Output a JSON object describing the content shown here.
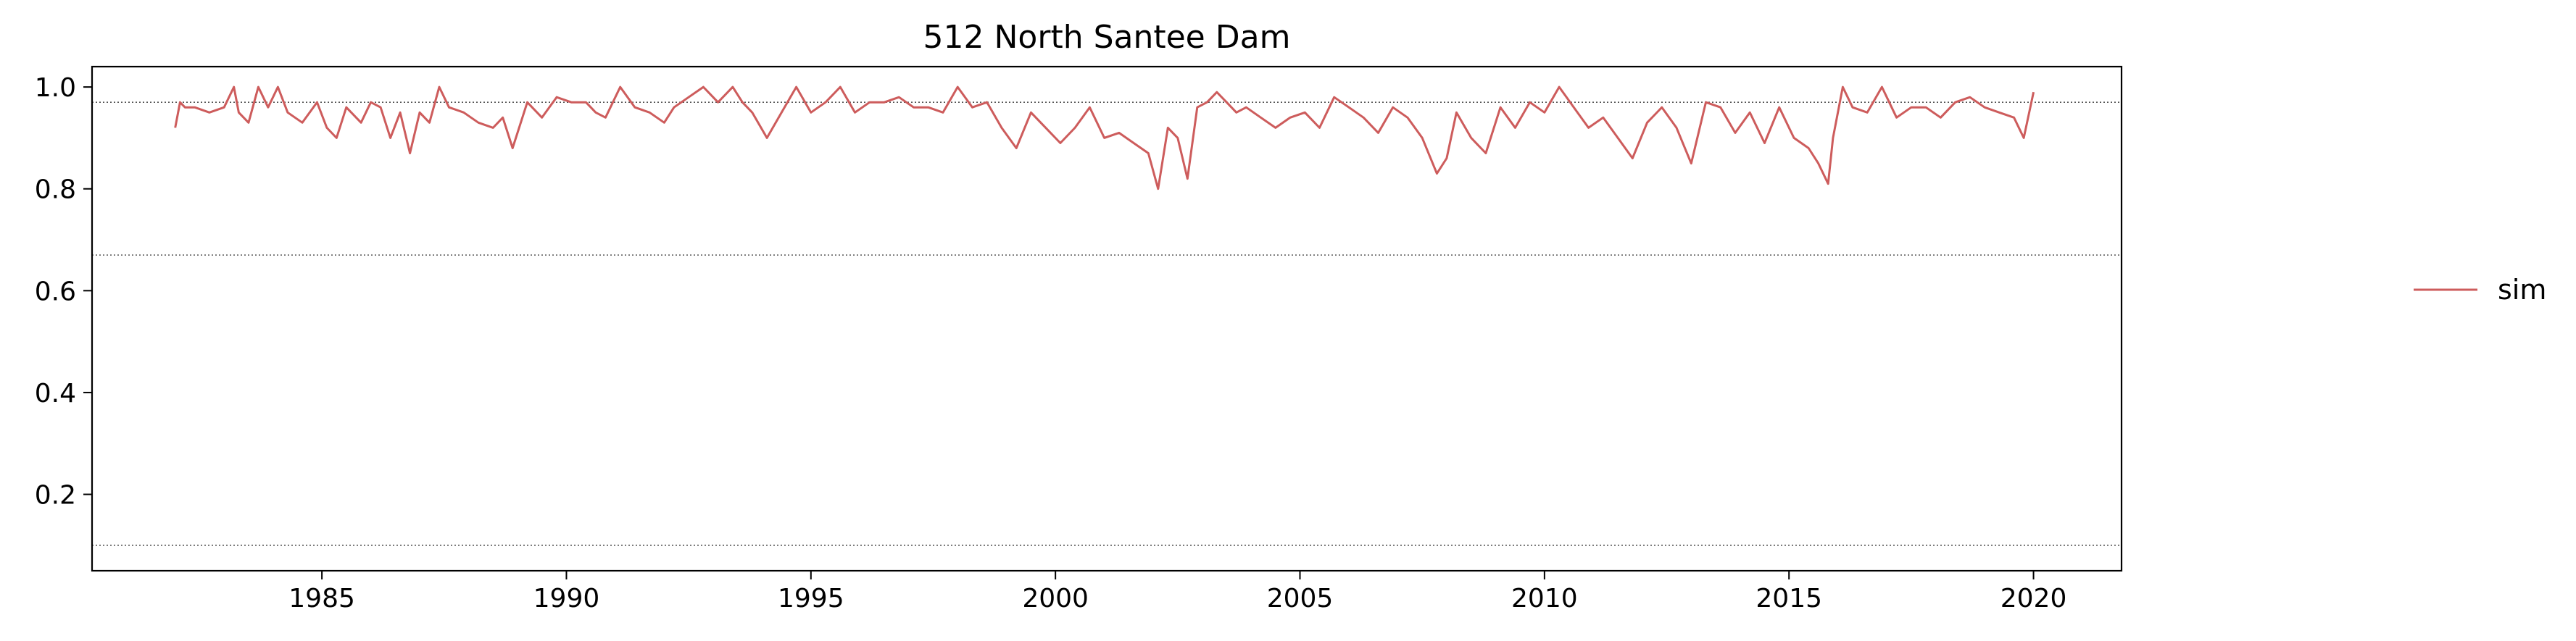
{
  "chart_data": {
    "type": "line",
    "title": "512  North Santee Dam",
    "xlabel": "",
    "ylabel": "",
    "xlim": [
      1980.3,
      2021.8
    ],
    "ylim": [
      0.05,
      1.04
    ],
    "x_ticks": [
      1985,
      1990,
      1995,
      2000,
      2005,
      2010,
      2015,
      2020
    ],
    "x_tick_labels": [
      "1985",
      "1990",
      "1995",
      "2000",
      "2005",
      "2010",
      "2015",
      "2020"
    ],
    "y_ticks": [
      0.2,
      0.4,
      0.6,
      0.8,
      1.0
    ],
    "y_tick_labels": [
      "0.2",
      "0.4",
      "0.6",
      "0.8",
      "1.0"
    ],
    "reference_lines": [
      0.97,
      0.67,
      0.1
    ],
    "grid": false,
    "legend_position": "right, outside plot",
    "colors": {
      "sim": "#cd5c5c",
      "reference": "#555555"
    },
    "series": [
      {
        "name": "sim",
        "x": [
          1982.0,
          1982.1,
          1982.2,
          1982.4,
          1982.7,
          1983.0,
          1983.2,
          1983.3,
          1983.5,
          1983.7,
          1983.9,
          1984.1,
          1984.3,
          1984.6,
          1984.9,
          1985.1,
          1985.3,
          1985.5,
          1985.8,
          1986.0,
          1986.2,
          1986.4,
          1986.6,
          1986.8,
          1987.0,
          1987.2,
          1987.4,
          1987.6,
          1987.9,
          1988.2,
          1988.5,
          1988.7,
          1988.9,
          1989.2,
          1989.5,
          1989.8,
          1990.1,
          1990.4,
          1990.6,
          1990.8,
          1991.1,
          1991.4,
          1991.7,
          1992.0,
          1992.2,
          1992.5,
          1992.8,
          1993.1,
          1993.4,
          1993.6,
          1993.8,
          1994.1,
          1994.4,
          1994.7,
          1995.0,
          1995.3,
          1995.6,
          1995.9,
          1996.2,
          1996.5,
          1996.8,
          1997.1,
          1997.4,
          1997.7,
          1998.0,
          1998.3,
          1998.6,
          1998.9,
          1999.2,
          1999.5,
          1999.8,
          2000.1,
          2000.4,
          2000.7,
          2001.0,
          2001.3,
          2001.6,
          2001.9,
          2002.1,
          2002.3,
          2002.5,
          2002.7,
          2002.9,
          2003.1,
          2003.3,
          2003.5,
          2003.7,
          2003.9,
          2004.2,
          2004.5,
          2004.8,
          2005.1,
          2005.4,
          2005.7,
          2006.0,
          2006.3,
          2006.6,
          2006.9,
          2007.2,
          2007.5,
          2007.8,
          2008.0,
          2008.2,
          2008.5,
          2008.8,
          2009.1,
          2009.4,
          2009.7,
          2010.0,
          2010.3,
          2010.6,
          2010.9,
          2011.2,
          2011.5,
          2011.8,
          2012.1,
          2012.4,
          2012.7,
          2013.0,
          2013.3,
          2013.6,
          2013.9,
          2014.2,
          2014.5,
          2014.8,
          2015.1,
          2015.4,
          2015.6,
          2015.8,
          2015.9,
          2016.1,
          2016.3,
          2016.6,
          2016.9,
          2017.2,
          2017.5,
          2017.8,
          2018.1,
          2018.4,
          2018.7,
          2019.0,
          2019.3,
          2019.6,
          2019.8,
          2020.0
        ],
        "y": [
          0.92,
          0.97,
          0.96,
          0.96,
          0.95,
          0.96,
          1.0,
          0.95,
          0.93,
          1.0,
          0.96,
          1.0,
          0.95,
          0.93,
          0.97,
          0.92,
          0.9,
          0.96,
          0.93,
          0.97,
          0.96,
          0.9,
          0.95,
          0.87,
          0.95,
          0.93,
          1.0,
          0.96,
          0.95,
          0.93,
          0.92,
          0.94,
          0.88,
          0.97,
          0.94,
          0.98,
          0.97,
          0.97,
          0.95,
          0.94,
          1.0,
          0.96,
          0.95,
          0.93,
          0.96,
          0.98,
          1.0,
          0.97,
          1.0,
          0.97,
          0.95,
          0.9,
          0.95,
          1.0,
          0.95,
          0.97,
          1.0,
          0.95,
          0.97,
          0.97,
          0.98,
          0.96,
          0.96,
          0.95,
          1.0,
          0.96,
          0.97,
          0.92,
          0.88,
          0.95,
          0.92,
          0.89,
          0.92,
          0.96,
          0.9,
          0.91,
          0.89,
          0.87,
          0.8,
          0.92,
          0.9,
          0.82,
          0.96,
          0.97,
          0.99,
          0.97,
          0.95,
          0.96,
          0.94,
          0.92,
          0.94,
          0.95,
          0.92,
          0.98,
          0.96,
          0.94,
          0.91,
          0.96,
          0.94,
          0.9,
          0.83,
          0.86,
          0.95,
          0.9,
          0.87,
          0.96,
          0.92,
          0.97,
          0.95,
          1.0,
          0.96,
          0.92,
          0.94,
          0.9,
          0.86,
          0.93,
          0.96,
          0.92,
          0.85,
          0.97,
          0.96,
          0.91,
          0.95,
          0.89,
          0.96,
          0.9,
          0.88,
          0.85,
          0.81,
          0.9,
          1.0,
          0.96,
          0.95,
          1.0,
          0.94,
          0.96,
          0.96,
          0.94,
          0.97,
          0.98,
          0.96,
          0.95,
          0.94,
          0.9,
          0.99
        ]
      }
    ]
  }
}
